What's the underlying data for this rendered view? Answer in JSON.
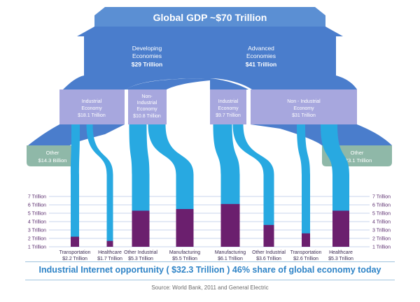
{
  "title": "Global GDP ~$70 Trillion",
  "developing": {
    "line1": "Developing",
    "line2": "Economies",
    "line3": "$29 Trillion"
  },
  "advanced": {
    "line1": "Advanced",
    "line2": "Economies",
    "line3": "$41 Trillion"
  },
  "dev_industrial": {
    "line1": "Industrial",
    "line2": "Economy",
    "line3": "$18.1 Trillion"
  },
  "dev_non_industrial": {
    "line1": "Non-",
    "line2": "Industrial",
    "line3": "Economy",
    "line4": "$10.8 Trillion"
  },
  "adv_industrial": {
    "line1": "Industrial",
    "line2": "Economy",
    "line3": "$9.7 Trillion"
  },
  "adv_non_industrial": {
    "line1": "Non - Industrial",
    "line2": "Economy",
    "line3": "$31 Trillion"
  },
  "other_left": {
    "line1": "Other",
    "line2": "$14.3 Billion"
  },
  "other_right": {
    "line1": "Other",
    "line2": "$23.1 Trillion"
  },
  "y_ticks": [
    "7 Trillion",
    "6 Trillion",
    "5 Trillion",
    "4 Trillion",
    "3 Trillion",
    "2 Trillion",
    "1 Trillion"
  ],
  "categories": [
    {
      "name": "Transportation",
      "amount": "$2.2 Trillion",
      "value": 2.2
    },
    {
      "name": "Healthcare",
      "amount": "$1.7 Trillion",
      "value": 1.7
    },
    {
      "name": "Other Industrial",
      "amount": "$5.3 Trillion",
      "value": 5.3
    },
    {
      "name": "Manufacturing",
      "amount": "$5.5 Trillion",
      "value": 5.5
    },
    {
      "name": "Manufacturing",
      "amount": "$6.1 Trillion",
      "value": 6.1
    },
    {
      "name": "Other Industrial",
      "amount": "$3.6 Trillion",
      "value": 3.6
    },
    {
      "name": "Transportation",
      "amount": "$2.6 Trillion",
      "value": 2.6
    },
    {
      "name": "Healthcare",
      "amount": "$5.3 Trillion",
      "value": 5.3
    }
  ],
  "banner": "Industrial Internet opportunity  ( $32.3 Trillion )  46% share of global economy today",
  "source": "Source: World Bank, 2011 and General Electric",
  "colors": {
    "top": "#5b8fd3",
    "tier2": "#4a7dcc",
    "tier3": "#a7a7de",
    "other": "#8fb8a8",
    "stream": "#28a9e1",
    "bar": "#6b1f6e"
  }
}
